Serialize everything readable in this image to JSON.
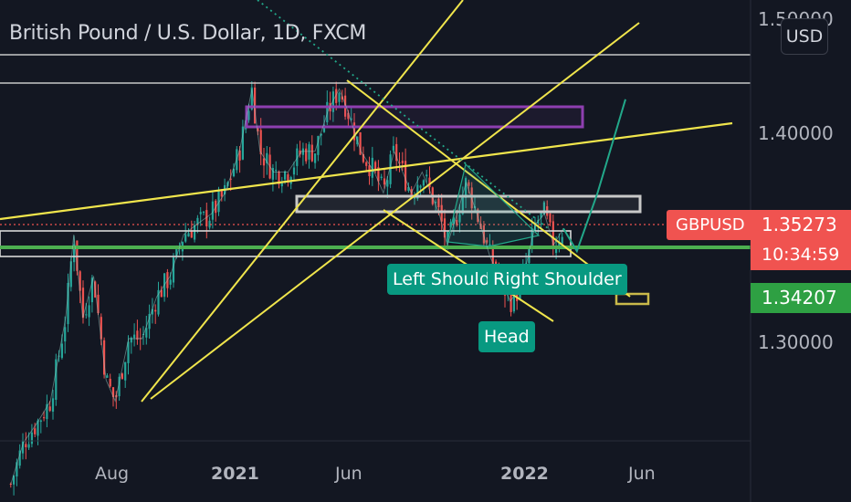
{
  "header": {
    "title": "British Pound / U.S. Dollar, 1D, FXCM"
  },
  "currency_button": {
    "label": "USD"
  },
  "price_scale": {
    "symbol": "GBPUSD",
    "last_price": "1.35273",
    "countdown": "10:34:59",
    "reference_price": "1.34207",
    "last_color": "#f05350",
    "reference_color": "#2ea043"
  },
  "annotations": {
    "left_shoulder": "Left Should",
    "right_shoulder": "Right Shoulder",
    "head": "Head"
  },
  "colors": {
    "background": "#131722",
    "up": "#26a69a",
    "down": "#ef5350",
    "trendline": "#f0e54c",
    "support": "#4caf50",
    "zone": "#8e3fb0",
    "projection": "#22a88a"
  },
  "chart_data": {
    "type": "candlestick",
    "y_tick_labels": [
      "1.30000",
      "1.40000",
      "1.50000"
    ],
    "ylim": [
      1.2,
      1.52
    ],
    "x_tick_labels": [
      "Aug",
      "2021",
      "Jun",
      "2022",
      "Jun"
    ],
    "grid": false,
    "legend": "none",
    "series": [
      {
        "kind": "ohlc-close-path",
        "points": [
          {
            "x": "2020-06-01",
            "y": 1.23
          },
          {
            "x": "2020-06-15",
            "y": 1.25
          },
          {
            "x": "2020-07-01",
            "y": 1.26
          },
          {
            "x": "2020-07-15",
            "y": 1.27
          },
          {
            "x": "2020-08-01",
            "y": 1.31
          },
          {
            "x": "2020-08-10",
            "y": 1.35
          },
          {
            "x": "2020-08-20",
            "y": 1.31
          },
          {
            "x": "2020-09-01",
            "y": 1.33
          },
          {
            "x": "2020-09-15",
            "y": 1.28
          },
          {
            "x": "2020-09-25",
            "y": 1.27
          },
          {
            "x": "2020-10-10",
            "y": 1.3
          },
          {
            "x": "2020-10-25",
            "y": 1.3
          },
          {
            "x": "2020-11-10",
            "y": 1.32
          },
          {
            "x": "2020-11-25",
            "y": 1.33
          },
          {
            "x": "2020-12-10",
            "y": 1.35
          },
          {
            "x": "2020-12-25",
            "y": 1.355
          },
          {
            "x": "2021-01-10",
            "y": 1.36
          },
          {
            "x": "2021-01-25",
            "y": 1.37
          },
          {
            "x": "2021-02-10",
            "y": 1.39
          },
          {
            "x": "2021-02-24",
            "y": 1.42
          },
          {
            "x": "2021-03-05",
            "y": 1.39
          },
          {
            "x": "2021-03-20",
            "y": 1.38
          },
          {
            "x": "2021-04-05",
            "y": 1.38
          },
          {
            "x": "2021-04-20",
            "y": 1.39
          },
          {
            "x": "2021-05-05",
            "y": 1.39
          },
          {
            "x": "2021-05-20",
            "y": 1.41
          },
          {
            "x": "2021-06-01",
            "y": 1.42
          },
          {
            "x": "2021-06-10",
            "y": 1.41
          },
          {
            "x": "2021-06-25",
            "y": 1.39
          },
          {
            "x": "2021-07-10",
            "y": 1.38
          },
          {
            "x": "2021-07-20",
            "y": 1.37
          },
          {
            "x": "2021-08-01",
            "y": 1.39
          },
          {
            "x": "2021-08-20",
            "y": 1.37
          },
          {
            "x": "2021-09-01",
            "y": 1.38
          },
          {
            "x": "2021-09-20",
            "y": 1.36
          },
          {
            "x": "2021-09-29",
            "y": 1.345
          },
          {
            "x": "2021-10-10",
            "y": 1.36
          },
          {
            "x": "2021-10-20",
            "y": 1.375
          },
          {
            "x": "2021-11-01",
            "y": 1.36
          },
          {
            "x": "2021-11-15",
            "y": 1.34
          },
          {
            "x": "2021-11-25",
            "y": 1.33
          },
          {
            "x": "2021-12-08",
            "y": 1.318
          },
          {
            "x": "2021-12-20",
            "y": 1.325
          },
          {
            "x": "2022-01-05",
            "y": 1.355
          },
          {
            "x": "2022-01-15",
            "y": 1.36
          },
          {
            "x": "2022-01-25",
            "y": 1.345
          },
          {
            "x": "2022-02-05",
            "y": 1.353
          }
        ]
      },
      {
        "kind": "projection",
        "points": [
          {
            "x": "2022-02-05",
            "y": 1.353
          },
          {
            "x": "2022-02-20",
            "y": 1.342
          },
          {
            "x": "2022-03-15",
            "y": 1.37
          },
          {
            "x": "2022-04-15",
            "y": 1.415
          }
        ]
      }
    ]
  }
}
